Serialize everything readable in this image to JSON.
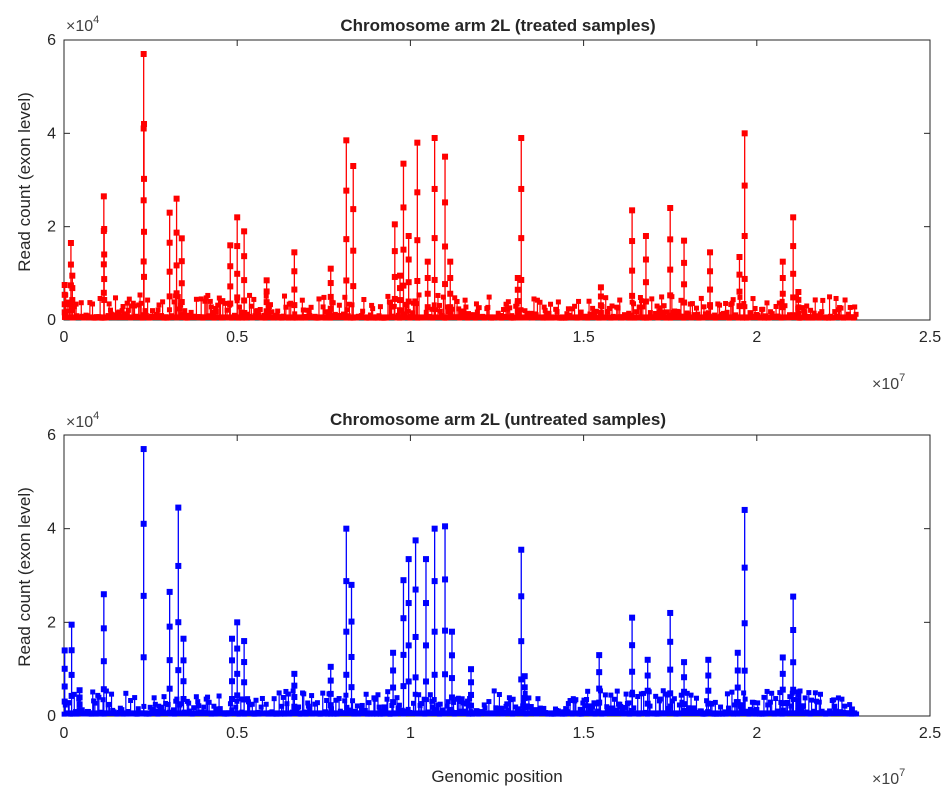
{
  "figure": {
    "x_multiplier_base": "×10",
    "x_multiplier_exp": "7",
    "y_multiplier_base": "×10",
    "y_multiplier_exp": "4"
  },
  "chart_data": [
    {
      "type": "line",
      "title": "Chromosome arm 2L (treated samples)",
      "xlabel": "",
      "ylabel": "Read count (exon level)",
      "xlim": [
        0,
        25000000
      ],
      "ylim": [
        0,
        60000
      ],
      "xticks": [
        "0",
        "0.5",
        "1",
        "1.5",
        "2",
        "2.5"
      ],
      "yticks": [
        "0",
        "2",
        "4",
        "6"
      ],
      "color": "#ff0000",
      "marker": "square",
      "grid": false,
      "peaks": [
        {
          "x": 20000,
          "y": 7500
        },
        {
          "x": 200000,
          "y": 16500
        },
        {
          "x": 240000,
          "y": 9500
        },
        {
          "x": 1150000,
          "y": 26500
        },
        {
          "x": 1160000,
          "y": 19500
        },
        {
          "x": 2300000,
          "y": 57000
        },
        {
          "x": 2310000,
          "y": 42000
        },
        {
          "x": 3050000,
          "y": 23000
        },
        {
          "x": 3250000,
          "y": 26000
        },
        {
          "x": 3400000,
          "y": 17500
        },
        {
          "x": 4800000,
          "y": 16000
        },
        {
          "x": 5000000,
          "y": 22000
        },
        {
          "x": 5200000,
          "y": 19000
        },
        {
          "x": 5850000,
          "y": 8500
        },
        {
          "x": 6650000,
          "y": 14500
        },
        {
          "x": 7700000,
          "y": 11000
        },
        {
          "x": 8150000,
          "y": 38500
        },
        {
          "x": 8350000,
          "y": 33000
        },
        {
          "x": 9550000,
          "y": 20500
        },
        {
          "x": 9700000,
          "y": 9500
        },
        {
          "x": 9800000,
          "y": 33500
        },
        {
          "x": 9950000,
          "y": 18000
        },
        {
          "x": 10200000,
          "y": 38000
        },
        {
          "x": 10500000,
          "y": 12500
        },
        {
          "x": 10700000,
          "y": 39000
        },
        {
          "x": 11000000,
          "y": 35000
        },
        {
          "x": 11150000,
          "y": 12500
        },
        {
          "x": 13200000,
          "y": 39000
        },
        {
          "x": 13100000,
          "y": 9000
        },
        {
          "x": 15500000,
          "y": 7000
        },
        {
          "x": 16400000,
          "y": 23500
        },
        {
          "x": 16800000,
          "y": 18000
        },
        {
          "x": 17500000,
          "y": 24000
        },
        {
          "x": 17900000,
          "y": 17000
        },
        {
          "x": 18650000,
          "y": 14500
        },
        {
          "x": 19500000,
          "y": 13500
        },
        {
          "x": 19650000,
          "y": 40000
        },
        {
          "x": 20750000,
          "y": 12500
        },
        {
          "x": 21050000,
          "y": 22000
        },
        {
          "x": 21200000,
          "y": 6000
        }
      ]
    },
    {
      "type": "line",
      "title": "Chromosome arm 2L (untreated samples)",
      "xlabel": "Genomic position",
      "ylabel": "Read count (exon level)",
      "xlim": [
        0,
        25000000
      ],
      "ylim": [
        0,
        60000
      ],
      "xticks": [
        "0",
        "0.5",
        "1",
        "1.5",
        "2",
        "2.5"
      ],
      "yticks": [
        "0",
        "2",
        "4",
        "6"
      ],
      "color": "#0000ff",
      "marker": "square",
      "grid": false,
      "peaks": [
        {
          "x": 20000,
          "y": 14000
        },
        {
          "x": 220000,
          "y": 19500
        },
        {
          "x": 450000,
          "y": 5500
        },
        {
          "x": 1150000,
          "y": 26000
        },
        {
          "x": 2300000,
          "y": 57000
        },
        {
          "x": 3050000,
          "y": 26500
        },
        {
          "x": 3300000,
          "y": 44500
        },
        {
          "x": 3450000,
          "y": 16500
        },
        {
          "x": 4850000,
          "y": 16500
        },
        {
          "x": 5000000,
          "y": 20000
        },
        {
          "x": 5200000,
          "y": 16000
        },
        {
          "x": 6650000,
          "y": 9000
        },
        {
          "x": 7700000,
          "y": 10500
        },
        {
          "x": 8150000,
          "y": 40000
        },
        {
          "x": 8300000,
          "y": 28000
        },
        {
          "x": 9500000,
          "y": 13500
        },
        {
          "x": 9800000,
          "y": 29000
        },
        {
          "x": 9950000,
          "y": 33500
        },
        {
          "x": 10150000,
          "y": 37500
        },
        {
          "x": 10450000,
          "y": 33500
        },
        {
          "x": 10700000,
          "y": 40000
        },
        {
          "x": 11000000,
          "y": 40500
        },
        {
          "x": 11200000,
          "y": 18000
        },
        {
          "x": 11750000,
          "y": 10000
        },
        {
          "x": 13200000,
          "y": 35500
        },
        {
          "x": 13300000,
          "y": 8500
        },
        {
          "x": 15450000,
          "y": 13000
        },
        {
          "x": 16400000,
          "y": 21000
        },
        {
          "x": 16850000,
          "y": 12000
        },
        {
          "x": 17500000,
          "y": 22000
        },
        {
          "x": 17900000,
          "y": 11500
        },
        {
          "x": 18600000,
          "y": 12000
        },
        {
          "x": 19450000,
          "y": 13500
        },
        {
          "x": 19650000,
          "y": 44000
        },
        {
          "x": 20750000,
          "y": 12500
        },
        {
          "x": 21050000,
          "y": 25500
        },
        {
          "x": 21200000,
          "y": 4500
        }
      ]
    }
  ]
}
